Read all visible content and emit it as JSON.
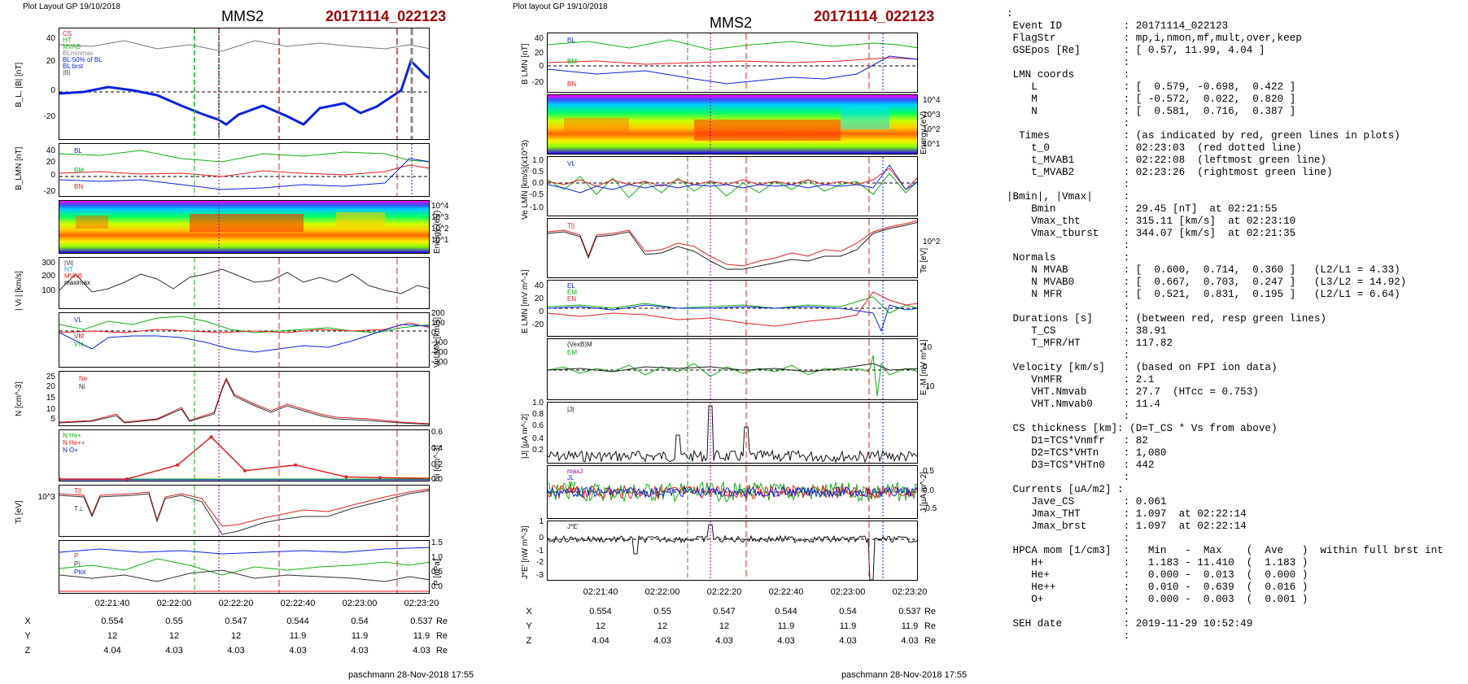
{
  "left": {
    "layout_label": "Plot Layout GP 19/10/2018",
    "title": "MMS2",
    "event": "20171114_022123",
    "xticks": [
      "02:21:40",
      "02:22:00",
      "02:22:20",
      "02:22:40",
      "02:23:00",
      "02:23:20"
    ],
    "coords": {
      "X": {
        "label": "X",
        "values": [
          "0.554",
          "0.55",
          "0.547",
          "0.544",
          "0.54",
          "0.537"
        ],
        "unit": "Re"
      },
      "Y": {
        "label": "Y",
        "values": [
          "12",
          "12",
          "12",
          "11.9",
          "11.9",
          "11.9"
        ],
        "unit": "Re"
      },
      "Z": {
        "label": "Z",
        "values": [
          "4.04",
          "4.03",
          "4.03",
          "4.03",
          "4.03",
          "4.03"
        ],
        "unit": "Re"
      }
    },
    "footer": "paschmann 28-Nov-2018 17:55",
    "panels": {
      "b_total": {
        "ylabel": "B_L, |B| [nT]",
        "ticks": [
          "40",
          "20",
          "0",
          "-20"
        ],
        "legend": [
          "CS",
          "HT",
          "MVAB",
          "BLminmax",
          "BL 50% of BL",
          "BL brst",
          "|B|"
        ]
      },
      "b_lmn": {
        "ylabel": "B_LMN [nT]",
        "ticks": [
          "40",
          "20",
          "0",
          "-20"
        ],
        "legend": [
          "BL",
          "BM",
          "BN"
        ]
      },
      "spec": {
        "ylabel": "Energy (eV)",
        "ticks": [
          "10^4",
          "10^3",
          "10^2",
          "10^1"
        ]
      },
      "vi": {
        "ylabel": "| Vi | [km/s]",
        "ticks": [
          "300",
          "200",
          "100"
        ],
        "legend": [
          "|Vi|",
          "HT",
          "MVAB",
          "maximax"
        ]
      },
      "vlmn": {
        "ylabel": "Vi LMN [km/s]",
        "ticks": [
          "200",
          "100",
          "0",
          "-100",
          "-200",
          "-300"
        ],
        "legend": [
          "VL",
          "VM",
          "VN"
        ]
      },
      "n": {
        "ylabel": "N [cm^-3]",
        "ticks": [
          "25",
          "20",
          "15",
          "10",
          "5"
        ],
        "legend": [
          "Ne",
          "Ni"
        ]
      },
      "ni": {
        "ylabel": "Ni [cm^-3]",
        "ticks": [
          "0.6",
          "0.4",
          "0.2",
          "0.0"
        ],
        "legend": [
          "N He+",
          "N He++",
          "N O+"
        ]
      },
      "ti": {
        "ylabel": "Ti [eV]",
        "ticks": [
          "10^3"
        ],
        "legend": [
          "T||",
          "T⊥"
        ]
      },
      "p": {
        "ylabel": "P [nPa]",
        "ticks": [
          "1.5",
          "1.0",
          "0.5",
          "0.0"
        ],
        "legend": [
          "P",
          "Pi",
          "Ptot"
        ]
      }
    }
  },
  "right": {
    "layout_label": "Plot layout GP 19/10/2018",
    "title": "MMS2",
    "event": "20171114_022123",
    "xticks": [
      "02:21:40",
      "02:22:00",
      "02:22:20",
      "02:22:40",
      "02:23:00",
      "02:23:20"
    ],
    "coords": {
      "X": {
        "label": "X",
        "values": [
          "0.554",
          "0.55",
          "0.547",
          "0.544",
          "0.54",
          "0.537"
        ],
        "unit": "Re"
      },
      "Y": {
        "label": "Y",
        "values": [
          "12",
          "12",
          "12",
          "11.9",
          "11.9",
          "11.9"
        ],
        "unit": "Re"
      },
      "Z": {
        "label": "Z",
        "values": [
          "4.04",
          "4.03",
          "4.03",
          "4.03",
          "4.03",
          "4.03"
        ],
        "unit": "Re"
      }
    },
    "footer": "paschmann 28-Nov-2018 17:55",
    "panels": {
      "blmn": {
        "ylabel": "B LMN [nT]",
        "ticks": [
          "40",
          "20",
          "0",
          "-20"
        ],
        "legend": [
          "BL",
          "BM",
          "BN"
        ]
      },
      "spec": {
        "ylabel": "Energy (eV)",
        "ticks": [
          "10^4",
          "10^3",
          "10^2",
          "10^1"
        ]
      },
      "ve": {
        "ylabel": "Ve LMN [km/s](x10^3)",
        "ticks": [
          "1.0",
          "0.5",
          "0.0",
          "-0.5",
          "-1.0"
        ],
        "legend": [
          "VL"
        ]
      },
      "te": {
        "ylabel": "Te [eV]",
        "ticks": [
          "10^2"
        ],
        "legend": [
          "T||"
        ]
      },
      "elmn": {
        "ylabel": "E LMN [mV m^-1]",
        "ticks": [
          "40",
          "20",
          "0",
          "-20"
        ],
        "legend": [
          "EL",
          "EM",
          "EN"
        ]
      },
      "em": {
        "ylabel": "E_M [mV m^-1]",
        "ticks": [
          "10",
          "0",
          "-10"
        ],
        "legend": [
          "(VexB)M",
          "EM"
        ]
      },
      "j": {
        "ylabel": "|J| [µA m^-2]",
        "ticks": [
          "1.0",
          "0.8",
          "0.6",
          "0.4",
          "0.2"
        ],
        "legend": [
          "|J|"
        ]
      },
      "jlmn": {
        "ylabel": "J [µA m^-2]",
        "ticks": [
          "0.5",
          "0.0",
          "-0.5"
        ],
        "legend": [
          "maxJ",
          "JL",
          "JM",
          "JN"
        ]
      },
      "je": {
        "ylabel": "J*E' [nW m^-3]",
        "ticks": [
          "1",
          "0",
          "-1",
          "-2",
          "-3"
        ],
        "legend": [
          "J*E'"
        ]
      }
    }
  },
  "info_text": ":\n Event ID          : 20171114_022123\n FlagStr           : mp,i,nmon,mf,mult,over,keep\n GSEpos [Re]       : [ 0.57, 11.99, 4.04 ]\n                   :\n LMN coords        :\n    L              : [  0.579, -0.698,  0.422 ]\n    M              : [ -0.572,  0.022,  0.820 ]\n    N              : [  0.581,  0.716,  0.387 ]\n                   :\n  Times            : (as indicated by red, green lines in plots)\n    t_0            : 02:23:03  (red dotted line)\n    t_MVAB1        : 02:22:08  (leftmost green line)\n    t_MVAB2        : 02:23:26  (rightmost green line)\n                   :\n|Bmin|, |Vmax|     :\n    Bmin           : 29.45 [nT]  at 02:21:55\n    Vmax_tht       : 315.11 [km/s]  at 02:23:10\n    Vmax_tburst    : 344.07 [km/s]  at 02:21:35\n                   :\n Normals           :\n    N MVAB         : [  0.600,  0.714,  0.360 ]   (L2/L1 = 4.33)\n    N MVAB0        : [  0.667,  0.703,  0.247 ]   (L3/L2 = 14.92)\n    N MFR          : [  0.521,  0.831,  0.195 ]   (L2/L1 = 6.64)\n                   :\n Durations [s]     : (between red, resp green lines)\n    T_CS           : 38.91\n    T_MFR/HT       : 117.82\n                   :\n Velocity [km/s]   : (based on FPI ion data)\n    VnMFR          : 2.1\n    VHT.Nmvab      : 27.7  (HTcc = 0.753)\n    VHT.Nmvab0     : 11.4\n                   :\n CS thickness [km]: (D=T_CS * Vs from above)\n    D1=TCS*Vnmfr   : 82\n    D2=TCS*VHTn    : 1,080\n    D3=TCS*VHTn0   : 442\n                   :\n Currents [uA/m2] :\n    Jave_CS        : 0.061\n    Jmax_THT       : 1.097  at 02:22:14\n    Jmax_brst      : 1.097  at 02:22:14\n                   :\n HPCA mom [1/cm3]  :   Min   -  Max    (  Ave   )  within full brst int\n    H+             :   1.183 - 11.410  (  1.183 )\n    He+            :   0.000 -  0.013  (  0.000 )\n    He++           :   0.010 -  0.639  (  0.016 )\n    O+             :   0.000 -  0.003  (  0.001 )\n                   :\n SEH date          : 2019-11-29 10:52:49\n                   :",
  "chart_data": {
    "type": "line",
    "title": "MMS2 20171114_022123",
    "x_range": [
      "02:21:30",
      "02:23:20"
    ],
    "markers": {
      "t_0": "02:23:03",
      "t_MVAB1": "02:22:08",
      "t_MVAB2": "02:23:26"
    },
    "series": [
      {
        "name": "BL",
        "x": [
          "02:21:30",
          "02:21:50",
          "02:22:05",
          "02:22:15",
          "02:22:25",
          "02:22:40",
          "02:22:55",
          "02:23:05",
          "02:23:10",
          "02:23:20"
        ],
        "values": [
          0,
          -5,
          -15,
          -22,
          -12,
          -20,
          -12,
          0,
          25,
          10
        ]
      },
      {
        "name": "Ni He++",
        "x": [
          "02:21:30",
          "02:21:50",
          "02:22:05",
          "02:22:15",
          "02:22:25",
          "02:22:40",
          "02:22:55",
          "02:23:05",
          "02:23:20"
        ],
        "values": [
          0.0,
          0.0,
          0.2,
          0.6,
          0.12,
          0.2,
          0.03,
          0.02,
          0.01
        ]
      }
    ]
  }
}
